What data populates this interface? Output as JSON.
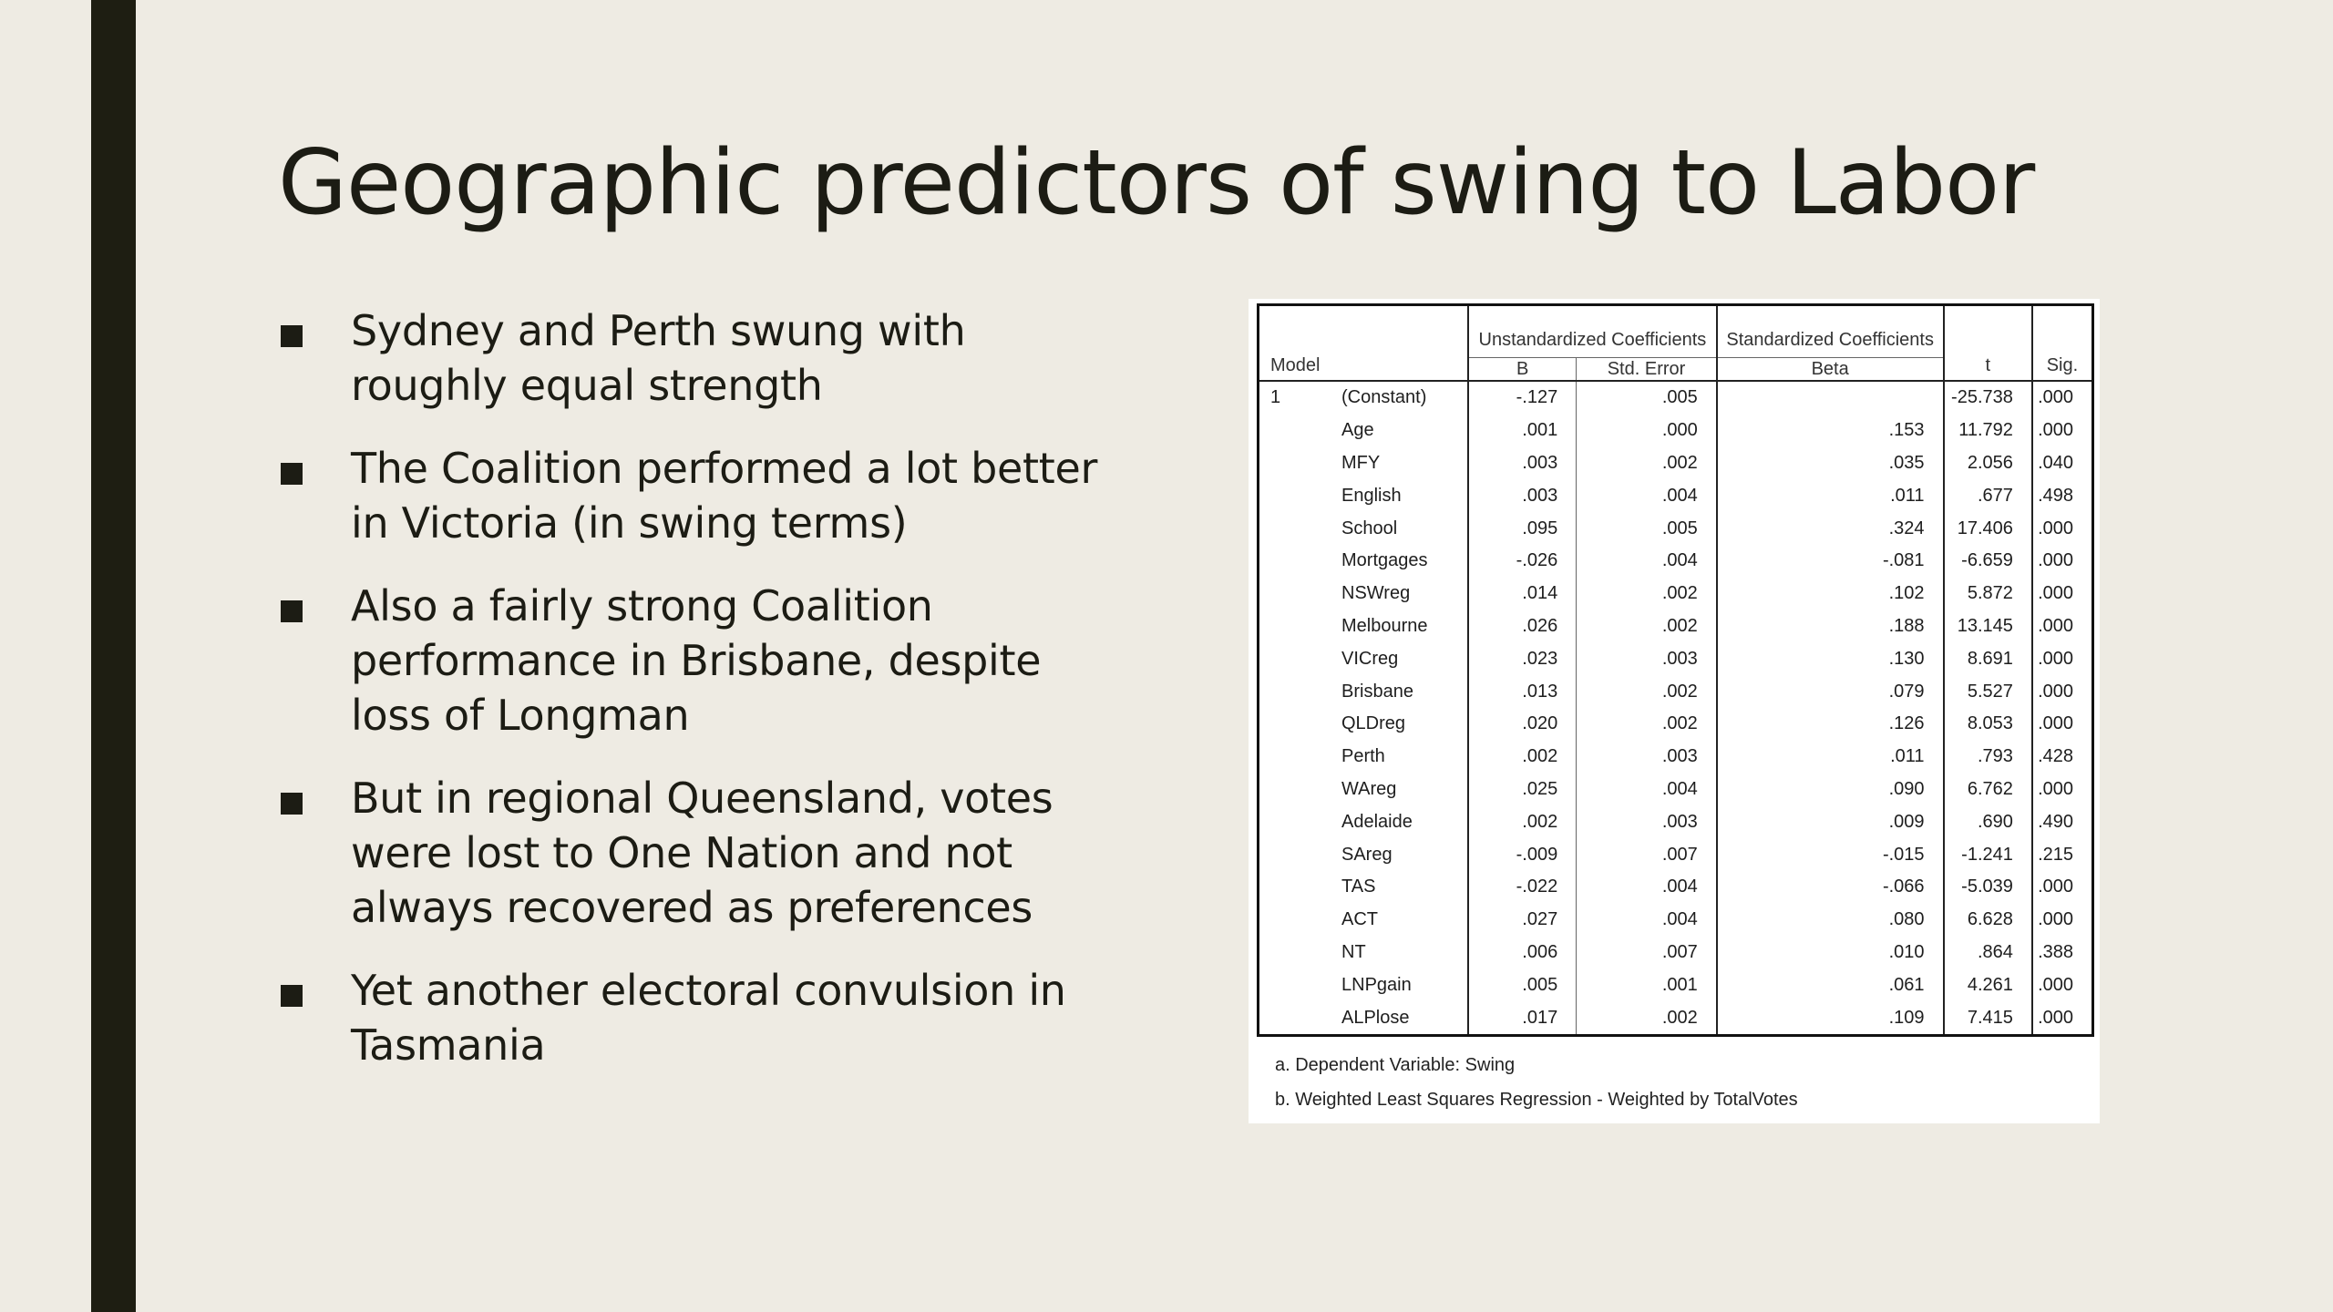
{
  "slide": {
    "title": "Geographic predictors of swing to Labor",
    "bullets": [
      "Sydney and Perth swung with roughly equal strength",
      "The Coalition performed a lot better in Victoria (in swing terms)",
      "Also a fairly strong Coalition performance in Brisbane, despite loss of Longman",
      "But in regional Queensland, votes were lost to One Nation and not always recovered as preferences",
      "Yet another electoral convulsion in Tasmania"
    ]
  },
  "table": {
    "headers": {
      "model": "Model",
      "unstandardized": "Unstandardized Coefficients",
      "standardized": "Standardized Coefficients",
      "b": "B",
      "std_error": "Std. Error",
      "beta": "Beta",
      "t": "t",
      "sig": "Sig."
    },
    "model_number": "1",
    "rows": [
      {
        "name": "(Constant)",
        "b": "-.127",
        "se": ".005",
        "beta": "",
        "t": "-25.738",
        "sig": ".000"
      },
      {
        "name": "Age",
        "b": ".001",
        "se": ".000",
        "beta": ".153",
        "t": "11.792",
        "sig": ".000"
      },
      {
        "name": "MFY",
        "b": ".003",
        "se": ".002",
        "beta": ".035",
        "t": "2.056",
        "sig": ".040"
      },
      {
        "name": "English",
        "b": ".003",
        "se": ".004",
        "beta": ".011",
        "t": ".677",
        "sig": ".498"
      },
      {
        "name": "School",
        "b": ".095",
        "se": ".005",
        "beta": ".324",
        "t": "17.406",
        "sig": ".000"
      },
      {
        "name": "Mortgages",
        "b": "-.026",
        "se": ".004",
        "beta": "-.081",
        "t": "-6.659",
        "sig": ".000"
      },
      {
        "name": "NSWreg",
        "b": ".014",
        "se": ".002",
        "beta": ".102",
        "t": "5.872",
        "sig": ".000"
      },
      {
        "name": "Melbourne",
        "b": ".026",
        "se": ".002",
        "beta": ".188",
        "t": "13.145",
        "sig": ".000"
      },
      {
        "name": "VICreg",
        "b": ".023",
        "se": ".003",
        "beta": ".130",
        "t": "8.691",
        "sig": ".000"
      },
      {
        "name": "Brisbane",
        "b": ".013",
        "se": ".002",
        "beta": ".079",
        "t": "5.527",
        "sig": ".000"
      },
      {
        "name": "QLDreg",
        "b": ".020",
        "se": ".002",
        "beta": ".126",
        "t": "8.053",
        "sig": ".000"
      },
      {
        "name": "Perth",
        "b": ".002",
        "se": ".003",
        "beta": ".011",
        "t": ".793",
        "sig": ".428"
      },
      {
        "name": "WAreg",
        "b": ".025",
        "se": ".004",
        "beta": ".090",
        "t": "6.762",
        "sig": ".000"
      },
      {
        "name": "Adelaide",
        "b": ".002",
        "se": ".003",
        "beta": ".009",
        "t": ".690",
        "sig": ".490"
      },
      {
        "name": "SAreg",
        "b": "-.009",
        "se": ".007",
        "beta": "-.015",
        "t": "-1.241",
        "sig": ".215"
      },
      {
        "name": "TAS",
        "b": "-.022",
        "se": ".004",
        "beta": "-.066",
        "t": "-5.039",
        "sig": ".000"
      },
      {
        "name": "ACT",
        "b": ".027",
        "se": ".004",
        "beta": ".080",
        "t": "6.628",
        "sig": ".000"
      },
      {
        "name": "NT",
        "b": ".006",
        "se": ".007",
        "beta": ".010",
        "t": ".864",
        "sig": ".388"
      },
      {
        "name": "LNPgain",
        "b": ".005",
        "se": ".001",
        "beta": ".061",
        "t": "4.261",
        "sig": ".000"
      },
      {
        "name": "ALPlose",
        "b": ".017",
        "se": ".002",
        "beta": ".109",
        "t": "7.415",
        "sig": ".000"
      }
    ],
    "footnotes": [
      "a. Dependent Variable: Swing",
      "b. Weighted Least Squares Regression - Weighted by TotalVotes"
    ]
  }
}
